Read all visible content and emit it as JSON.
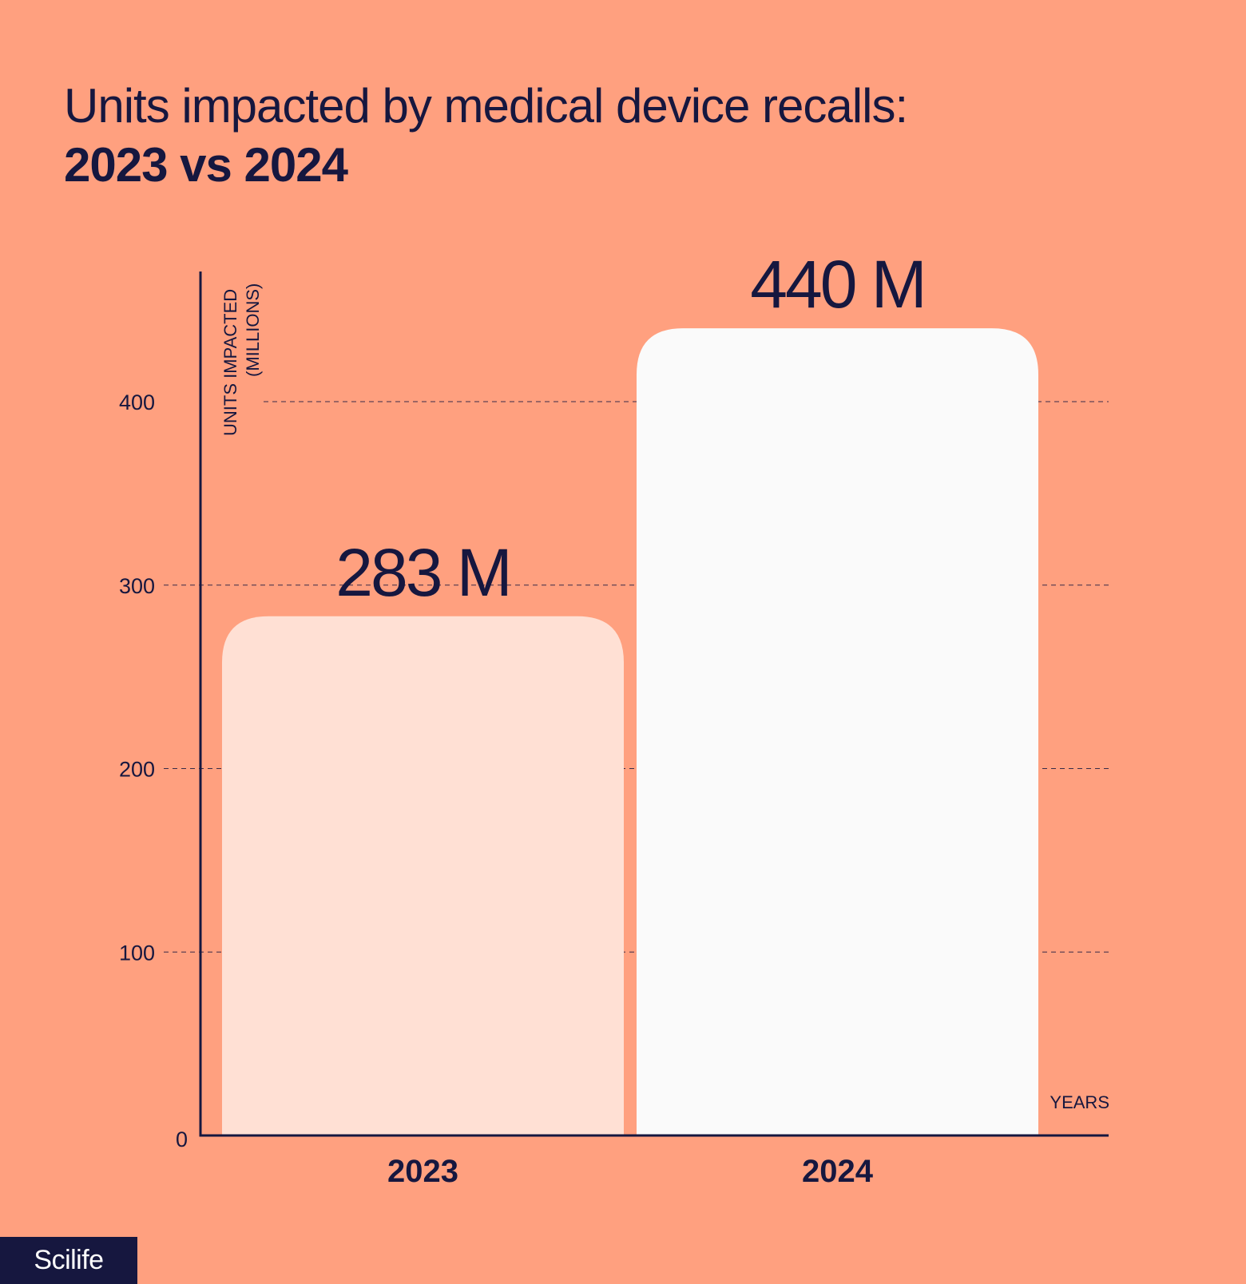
{
  "chart_data": {
    "type": "bar",
    "title": "Units impacted by medical device recalls:",
    "subtitle": "2023 vs 2024",
    "categories": [
      "2023",
      "2024"
    ],
    "values": [
      283,
      440
    ],
    "data_labels": [
      "283 M",
      "440 M"
    ],
    "xlabel": "YEARS",
    "ylabel_lines": [
      "UNITS IMPACTED",
      "(MILLIONS)"
    ],
    "ylim": [
      0,
      470
    ],
    "yticks": [
      0,
      100,
      200,
      300,
      400
    ],
    "grid": true,
    "bar_colors": [
      "#FFE0D4",
      "#FAFAFA"
    ],
    "background": "#FFA07F",
    "ink": "#16173F"
  },
  "brand": {
    "logo_text": "Scilife"
  }
}
